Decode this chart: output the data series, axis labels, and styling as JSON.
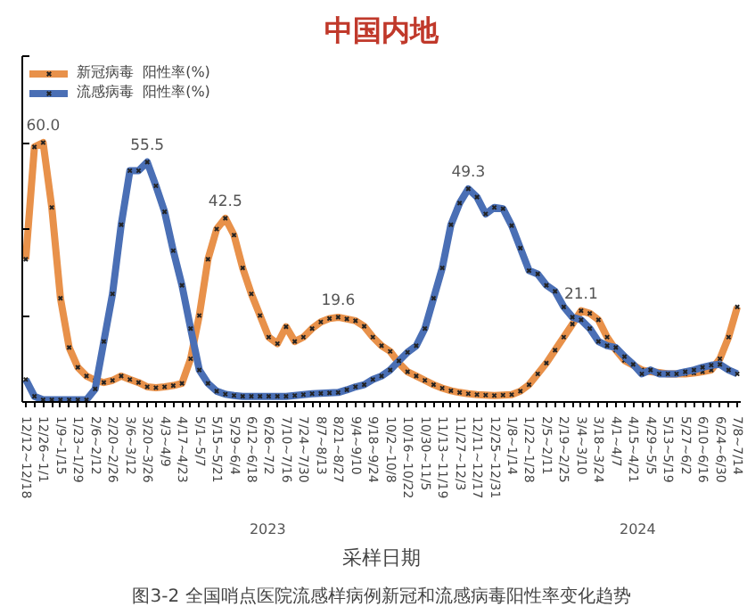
{
  "chart_data": {
    "type": "line",
    "title": "中国内地",
    "xlabel": "采样日期",
    "categories": [
      "12/12~12/18",
      null,
      "12/26~1/1",
      null,
      "1/9~1/15",
      null,
      "1/23~1/29",
      null,
      "2/6~2/12",
      null,
      "2/20~2/26",
      null,
      "3/6~3/12",
      null,
      "3/20~3/26",
      null,
      "4/3~4/9",
      null,
      "4/17~4/23",
      null,
      "5/1~5/7",
      null,
      "5/15~5/21",
      null,
      "5/29~6/4",
      null,
      "6/12~6/18",
      null,
      "6/26~7/2",
      null,
      "7/10~7/16",
      null,
      "7/24~7/30",
      null,
      "8/7~8/13",
      null,
      "8/21~8/27",
      null,
      "9/4~9/10",
      null,
      "9/18~9/24",
      null,
      "10/2~10/8",
      null,
      "10/16~10/22",
      null,
      "10/30~11/5",
      null,
      "11/13~11/19",
      null,
      "11/27~12/3",
      null,
      "12/11~12/17",
      null,
      "12/25~12/31",
      null,
      "1/8~1/14",
      null,
      "1/22~1/28",
      null,
      "2/5~2/11",
      null,
      "2/19~2/25",
      null,
      "3/4~3/10",
      null,
      "3/18~3/24",
      null,
      "4/1~4/7",
      null,
      "4/15~4/21",
      null,
      "4/29~5/5",
      null,
      "5/13~5/19",
      null,
      "5/27~6/2",
      null,
      "6/10~6/16",
      null,
      "6/24~6/30",
      null,
      "7/8~7/14"
    ],
    "series": [
      {
        "name": "新冠病毒  阳性率(%)",
        "color": "#e8914a",
        "values": [
          33,
          59,
          60.0,
          45,
          24,
          12.6,
          8,
          6,
          5,
          4.5,
          5,
          6,
          5.2,
          4.5,
          3.5,
          3.3,
          3.5,
          3.8,
          4.3,
          10,
          20,
          33,
          40,
          42.5,
          38.6,
          31,
          25,
          20,
          15,
          13.5,
          17.4,
          14,
          15,
          17,
          18.5,
          19.3,
          19.6,
          19.2,
          18.8,
          17.5,
          15,
          13,
          11.7,
          9,
          7,
          6,
          5,
          4,
          3.2,
          2.6,
          2.2,
          1.9,
          1.7,
          1.6,
          1.5,
          1.6,
          1.7,
          2.5,
          4,
          6.5,
          9,
          12,
          15,
          18,
          21.1,
          20.5,
          19,
          15,
          12,
          9.6,
          8.5,
          7.4,
          7,
          6.8,
          6.5,
          6.5,
          6.5,
          6.7,
          7,
          7.4,
          10,
          15,
          22
        ],
        "value_labels": [
          null,
          null,
          "60.0",
          null,
          null,
          null,
          null,
          null,
          null,
          null,
          null,
          null,
          null,
          null,
          null,
          null,
          null,
          null,
          null,
          null,
          null,
          null,
          null,
          "42.5",
          null,
          null,
          null,
          null,
          null,
          null,
          null,
          null,
          null,
          null,
          null,
          null,
          "19.6",
          null,
          null,
          null,
          null,
          null,
          null,
          null,
          null,
          null,
          null,
          null,
          null,
          null,
          null,
          null,
          null,
          null,
          null,
          null,
          null,
          null,
          null,
          null,
          null,
          null,
          null,
          null,
          "21.1",
          null,
          null,
          null,
          null,
          null,
          null,
          null,
          null,
          null,
          null,
          null,
          null,
          null,
          null,
          null,
          null,
          null,
          null
        ]
      },
      {
        "name": "流感病毒  阳性率(%)",
        "color": "#4a6fb5",
        "values": [
          5.2,
          1.3,
          0.5,
          0.5,
          0.5,
          0.5,
          0.5,
          0.5,
          3,
          14,
          25,
          41,
          53.5,
          53.5,
          55.5,
          50,
          44,
          35,
          27,
          17,
          7.4,
          4.3,
          2.5,
          1.8,
          1.5,
          1.3,
          1.3,
          1.3,
          1.3,
          1.3,
          1.3,
          1.5,
          1.7,
          1.9,
          2,
          2.1,
          2.2,
          2.8,
          3.5,
          4,
          5.2,
          6,
          7.4,
          9.5,
          11.5,
          13,
          17,
          24,
          31,
          41,
          46,
          49.3,
          47.4,
          43.5,
          45,
          44.7,
          40.8,
          35.6,
          30.4,
          29.6,
          27,
          25.6,
          22,
          19.6,
          19,
          17,
          14,
          13,
          12.6,
          10.5,
          8.7,
          6.5,
          7.4,
          6.5,
          6.5,
          6.5,
          7,
          7.4,
          8,
          8.5,
          8.7,
          7.4,
          6.5
        ],
        "value_labels": [
          null,
          null,
          null,
          null,
          null,
          null,
          null,
          null,
          null,
          null,
          null,
          null,
          null,
          null,
          "55.5",
          null,
          null,
          null,
          null,
          null,
          null,
          null,
          null,
          null,
          null,
          null,
          null,
          null,
          null,
          null,
          null,
          null,
          null,
          null,
          null,
          null,
          null,
          null,
          null,
          null,
          null,
          null,
          null,
          null,
          null,
          null,
          null,
          null,
          null,
          null,
          null,
          "49.3",
          null,
          null,
          null,
          null,
          null,
          null,
          null,
          null,
          null,
          null,
          null,
          null,
          null,
          null,
          null,
          null,
          null,
          null,
          null,
          null,
          null,
          null,
          null,
          null,
          null,
          null,
          null,
          null,
          null,
          null,
          null
        ]
      }
    ],
    "ylim": [
      0,
      80
    ],
    "yticks": [
      {
        "value": 0,
        "label": null
      },
      {
        "value": 20,
        "label": null
      },
      {
        "value": 40,
        "label": null
      },
      {
        "value": 60,
        "label": null
      },
      {
        "value": 80,
        "label": null
      }
    ],
    "tick_labels": "x",
    "grid": false,
    "legend": "top left",
    "marker": "cross",
    "line_style": "solid",
    "annotations": [
      "2023",
      "2024",
      "图3-2 全国哨点医院流感样病例新冠和流感病毒阳性率变化趋势"
    ]
  }
}
